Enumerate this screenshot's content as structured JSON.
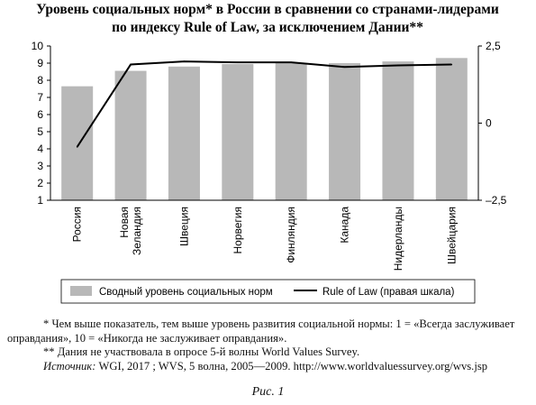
{
  "chart_data": {
    "type": "bar+line",
    "title_line1": "Уровень социальных норм* в России в сравнении со странами-лидерами",
    "title_line2": "по индексу Rule of Law, за исключением Дании**",
    "categories": [
      "Россия",
      "Новая Зеландия",
      "Швеция",
      "Норвегия",
      "Финляндия",
      "Канада",
      "Нидерланды",
      "Швейцария"
    ],
    "category_lines": [
      [
        "Россия"
      ],
      [
        "Новая",
        "Зеландия"
      ],
      [
        "Швеция"
      ],
      [
        "Норвегия"
      ],
      [
        "Финляндия"
      ],
      [
        "Канада"
      ],
      [
        "Нидерланды"
      ],
      [
        "Швейцария"
      ]
    ],
    "series": [
      {
        "name": "Сводный уровень социальных норм",
        "kind": "bar",
        "axis": "left",
        "color": "#b8b8b8",
        "values": [
          7.65,
          8.55,
          8.8,
          8.95,
          9.0,
          9.0,
          9.1,
          9.3
        ]
      },
      {
        "name": "Rule of Law (правая шкала)",
        "kind": "line",
        "axis": "right",
        "color": "#000000",
        "values": [
          -0.77,
          1.9,
          2.0,
          1.97,
          1.97,
          1.82,
          1.87,
          1.9
        ]
      }
    ],
    "y_left": {
      "min": 1,
      "max": 10,
      "ticks": [
        "1",
        "2",
        "3",
        "4",
        "5",
        "6",
        "7",
        "8",
        "9",
        "10"
      ]
    },
    "y_right": {
      "min": -2.5,
      "max": 2.5,
      "ticks": [
        "2,5",
        "0",
        "–2,5"
      ]
    },
    "grid": false,
    "legend_position": "bottom"
  },
  "notes": {
    "note1": "* Чем выше показатель, тем выше уровень развития социальной нормы: 1 = «Всегда заслуживает оправдания», 10 = «Никогда не заслуживает оправдания».",
    "note2": "** Дания не участвовала в опросе 5-й волны World Values Survey.",
    "source_label": "Источник:",
    "source_text": " WGI, 2017 ; WVS, 5 волна, 2005—2009. http://www.worldvaluessurvey.org/wvs.jsp"
  },
  "caption": "Рис. 1"
}
